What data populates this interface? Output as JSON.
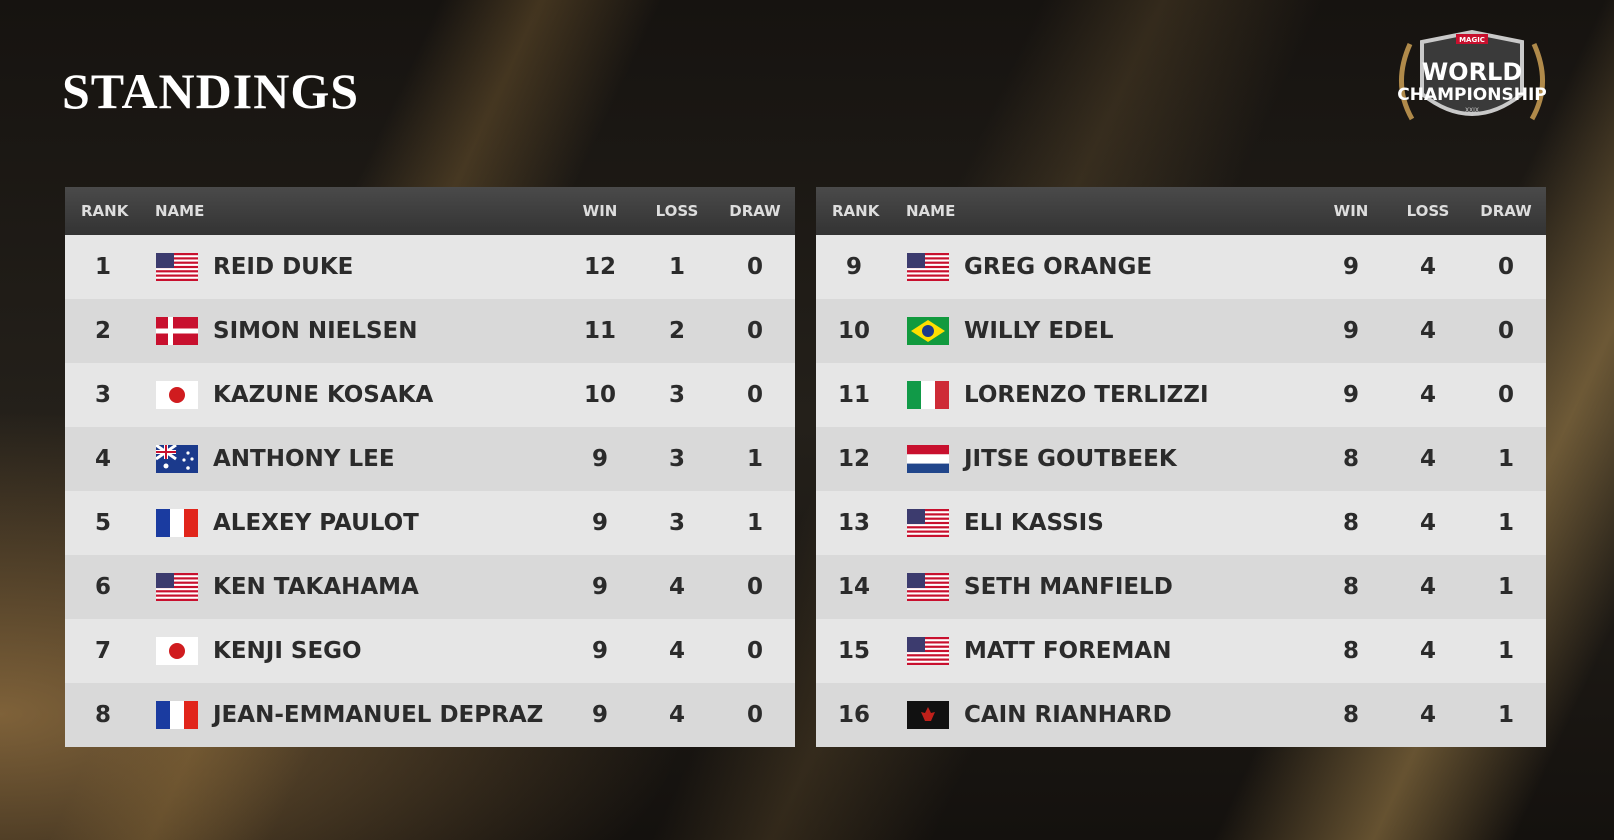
{
  "header": {
    "title": "STANDINGS",
    "logo": {
      "brand": "MAGIC",
      "line1": "WORLD",
      "line2": "CHAMPIONSHIP",
      "edition": "XXIX"
    }
  },
  "tables": [
    {
      "columns": [
        "RANK",
        "NAME",
        "WIN",
        "LOSS",
        "DRAW"
      ],
      "rows": [
        [
          1,
          "REID DUKE",
          12,
          1,
          0
        ],
        [
          2,
          "SIMON NIELSEN",
          11,
          2,
          0
        ],
        [
          3,
          "KAZUNE KOSAKA",
          10,
          3,
          0
        ],
        [
          4,
          "ANTHONY LEE",
          9,
          3,
          1
        ],
        [
          5,
          "ALEXEY PAULOT",
          9,
          3,
          1
        ],
        [
          6,
          "KEN TAKAHAMA",
          9,
          4,
          0
        ],
        [
          7,
          "KENJI SEGO",
          9,
          4,
          0
        ],
        [
          8,
          "JEAN-EMMANUEL DEPRAZ",
          9,
          4,
          0
        ]
      ]
    },
    {
      "columns": [
        "RANK",
        "NAME",
        "WIN",
        "LOSS",
        "DRAW"
      ],
      "rows": [
        [
          9,
          "GREG ORANGE",
          9,
          4,
          0
        ],
        [
          10,
          "WILLY EDEL",
          9,
          4,
          0
        ],
        [
          11,
          "LORENZO TERLIZZI",
          9,
          4,
          0
        ],
        [
          12,
          "JITSE GOUTBEEK",
          8,
          4,
          1
        ],
        [
          13,
          "ELI KASSIS",
          8,
          4,
          1
        ],
        [
          14,
          "SETH MANFIELD",
          8,
          4,
          1
        ],
        [
          15,
          "MATT FOREMAN",
          8,
          4,
          1
        ],
        [
          16,
          "CAIN RIANHARD",
          8,
          4,
          1
        ]
      ]
    }
  ]
}
